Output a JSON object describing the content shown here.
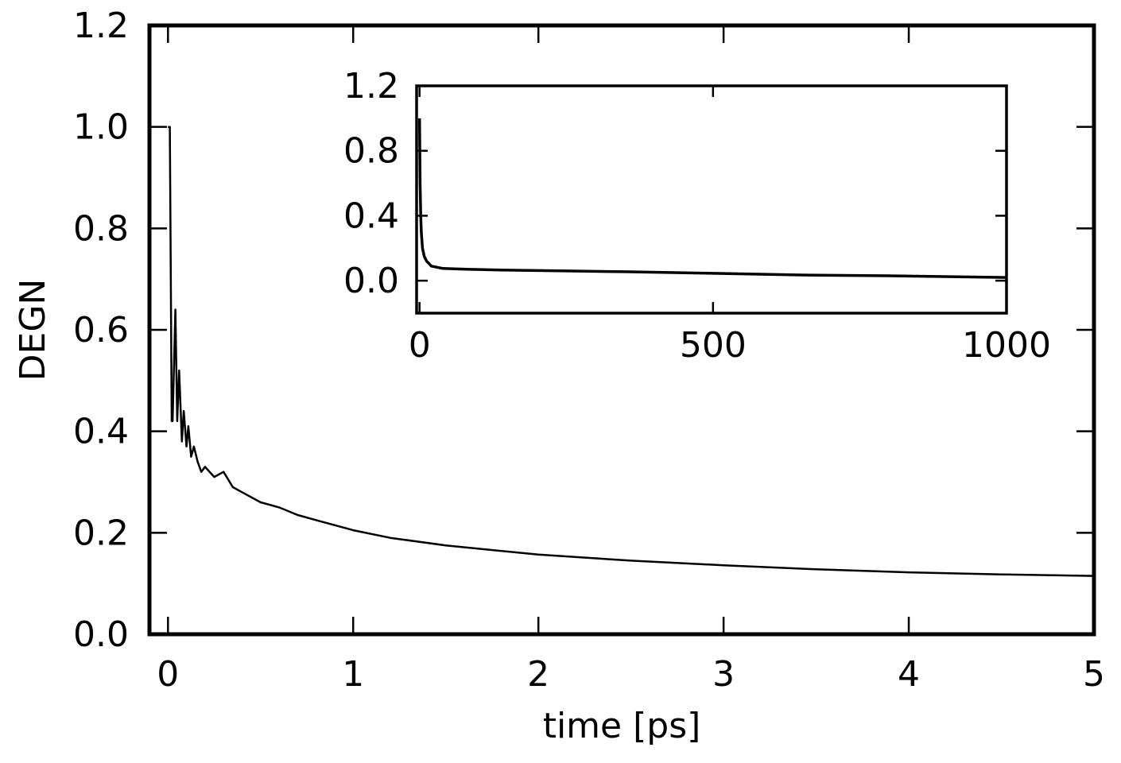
{
  "chart_data": [
    {
      "type": "line",
      "panel": "main",
      "xlabel": "time [ps]",
      "ylabel": "DEGN",
      "xlim": [
        -0.1,
        5
      ],
      "ylim": [
        0,
        1.2
      ],
      "xticks": [
        0,
        1,
        2,
        3,
        4,
        5
      ],
      "yticks": [
        0.0,
        0.2,
        0.4,
        0.6,
        0.8,
        1.0,
        1.2
      ],
      "xtick_labels": [
        "0",
        "1",
        "2",
        "3",
        "4",
        "5"
      ],
      "ytick_labels": [
        "0.0",
        "0.2",
        "0.4",
        "0.6",
        "0.8",
        "1.0",
        "1.2"
      ],
      "grid": false,
      "color": "#000000",
      "series": [
        {
          "x": [
            0,
            0.01,
            0.02,
            0.025,
            0.04,
            0.05,
            0.06,
            0.075,
            0.085,
            0.1,
            0.11,
            0.125,
            0.14,
            0.16,
            0.18,
            0.2,
            0.25,
            0.3,
            0.35,
            0.4,
            0.5,
            0.6,
            0.7,
            0.8,
            1.0,
            1.2,
            1.5,
            2.0,
            2.5,
            3.0,
            3.5,
            4.0,
            4.5,
            5.0
          ],
          "y": [
            1.0,
            1.0,
            0.42,
            0.42,
            0.64,
            0.42,
            0.52,
            0.38,
            0.44,
            0.37,
            0.41,
            0.35,
            0.37,
            0.34,
            0.32,
            0.33,
            0.31,
            0.32,
            0.29,
            0.28,
            0.26,
            0.25,
            0.235,
            0.225,
            0.205,
            0.19,
            0.175,
            0.157,
            0.145,
            0.136,
            0.128,
            0.122,
            0.118,
            0.115
          ]
        }
      ]
    },
    {
      "type": "line",
      "panel": "inset",
      "xlim": [
        -5,
        1000
      ],
      "ylim": [
        -0.2,
        1.2
      ],
      "xticks": [
        0,
        500,
        1000
      ],
      "yticks": [
        0.0,
        0.4,
        0.8,
        1.2
      ],
      "xtick_labels": [
        "0",
        "500",
        "1000"
      ],
      "ytick_labels": [
        "0.0",
        "0.4",
        "0.8",
        "1.2"
      ],
      "grid": false,
      "color": "#000000",
      "series": [
        {
          "x": [
            0,
            1,
            2,
            3,
            5,
            8,
            12,
            20,
            40,
            80,
            150,
            250,
            350,
            500,
            650,
            800,
            1000
          ],
          "y": [
            1.0,
            0.6,
            0.4,
            0.3,
            0.2,
            0.15,
            0.12,
            0.09,
            0.075,
            0.07,
            0.065,
            0.06,
            0.055,
            0.045,
            0.035,
            0.03,
            0.02
          ]
        }
      ]
    }
  ]
}
